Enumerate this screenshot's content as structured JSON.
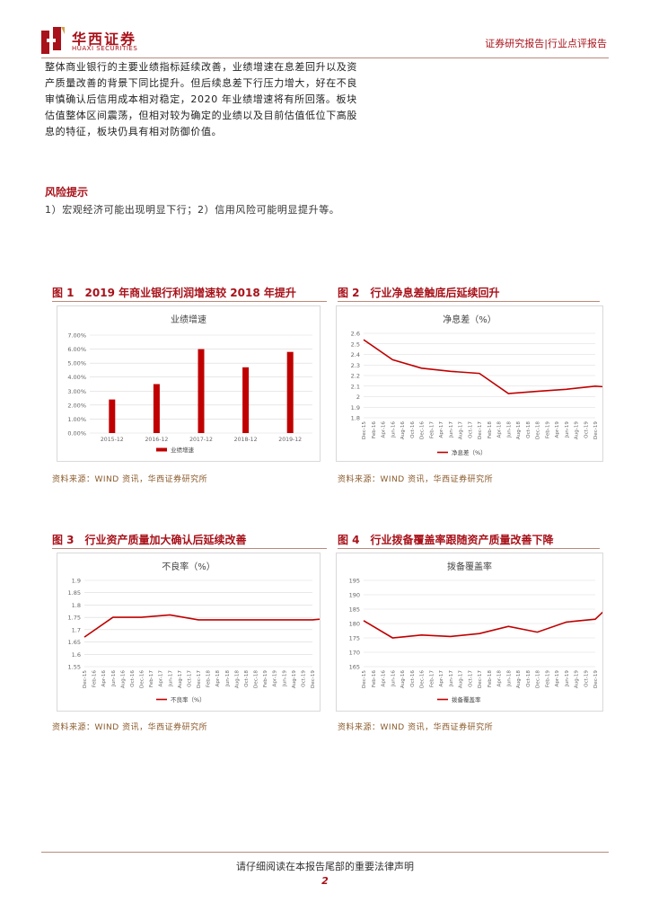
{
  "header": {
    "brand_cn": "华西证券",
    "brand_en": "HUAXI SECURITIES",
    "right_text": "证券研究报告|行业点评报告"
  },
  "body": {
    "paragraph": "整体商业银行的主要业绩指标延续改善，业绩增速在息差回升以及资产质量改善的背景下同比提升。但后续息差下行压力增大，好在不良审慎确认后信用成本相对稳定，2020 年业绩增速将有所回落。板块估值整体区间震荡，但相对较为确定的业绩以及目前估值低位下高股息的特征，板块仍具有相对防御价值。",
    "risk_title": "风险提示",
    "risk_text": "1）宏观经济可能出现明显下行；2）信用风险可能明显提升等。"
  },
  "figures": [
    {
      "title": "图 1　2019 年商业银行利润增速较 2018 年提升",
      "source": "资料来源：WIND 资讯，华西证券研究所"
    },
    {
      "title": "图 2　行业净息差触底后延续回升",
      "source": "资料来源：WIND 资讯，华西证券研究所"
    },
    {
      "title": "图 3　行业资产质量加大确认后延续改善",
      "source": "资料来源：WIND 资讯，华西证券研究所"
    },
    {
      "title": "图 4　行业拨备覆盖率跟随资产质量改善下降",
      "source": "资料来源：WIND 资讯，华西证券研究所"
    }
  ],
  "footer": {
    "text": "请仔细阅读在本报告尾部的重要法律声明",
    "page": "2"
  },
  "colors": {
    "accent": "#a8121a",
    "series": "#c00000",
    "grid": "#d9d9d9"
  },
  "chart_data": [
    {
      "type": "bar",
      "title": "业绩增速",
      "categories": [
        "2015-12",
        "2016-12",
        "2017-12",
        "2018-12",
        "2019-12"
      ],
      "series": [
        {
          "name": "业绩增速",
          "values": [
            0.024,
            0.035,
            0.06,
            0.047,
            0.058
          ]
        }
      ],
      "yticks": [
        "0.00%",
        "1.00%",
        "2.00%",
        "3.00%",
        "4.00%",
        "5.00%",
        "6.00%",
        "7.00%"
      ],
      "ylim": [
        0,
        0.07
      ],
      "legend": "bottom",
      "grid": true
    },
    {
      "type": "line",
      "title": "净息差（%）",
      "x": [
        "Dec-15",
        "Feb-16",
        "Apr-16",
        "Jun-16",
        "Aug-16",
        "Oct-16",
        "Dec-16",
        "Feb-17",
        "Apr-17",
        "Jun-17",
        "Aug-17",
        "Oct-17",
        "Dec-17",
        "Feb-18",
        "Apr-18",
        "Jun-18",
        "Aug-18",
        "Oct-18",
        "Dec-18",
        "Feb-19",
        "Apr-19",
        "Jun-19",
        "Aug-19",
        "Oct-19",
        "Dec-19"
      ],
      "points": [
        [
          0,
          2.54
        ],
        [
          3,
          2.35
        ],
        [
          6,
          2.27
        ],
        [
          9,
          2.24
        ],
        [
          12,
          2.22
        ],
        [
          15,
          2.03
        ],
        [
          18,
          2.05
        ],
        [
          21,
          2.07
        ],
        [
          24,
          2.1
        ],
        [
          27,
          2.08
        ],
        [
          30,
          2.12
        ],
        [
          33,
          2.15
        ],
        [
          36,
          2.18
        ],
        [
          39,
          2.17
        ],
        [
          42,
          2.18
        ],
        [
          45,
          2.19
        ],
        [
          48,
          2.2
        ]
      ],
      "series": [
        {
          "name": "净息差（%）"
        }
      ],
      "yticks": [
        "1.8",
        "1.9",
        "2",
        "2.1",
        "2.2",
        "2.3",
        "2.4",
        "2.5",
        "2.6"
      ],
      "ylim": [
        1.8,
        2.6
      ],
      "legend": "bottom",
      "grid": true
    },
    {
      "type": "line",
      "title": "不良率（%）",
      "x": [
        "Dec-15",
        "Feb-16",
        "Apr-16",
        "Jun-16",
        "Aug-16",
        "Oct-16",
        "Dec-16",
        "Feb-17",
        "Apr-17",
        "Jun-17",
        "Aug-17",
        "Oct-17",
        "Dec-17",
        "Feb-18",
        "Apr-18",
        "Jun-18",
        "Aug-18",
        "Oct-18",
        "Dec-18",
        "Feb-19",
        "Apr-19",
        "Jun-19",
        "Aug-19",
        "Oct-19",
        "Dec-19"
      ],
      "points": [
        [
          0,
          1.67
        ],
        [
          3,
          1.75
        ],
        [
          6,
          1.75
        ],
        [
          9,
          1.76
        ],
        [
          12,
          1.74
        ],
        [
          15,
          1.74
        ],
        [
          18,
          1.74
        ],
        [
          21,
          1.74
        ],
        [
          24,
          1.74
        ],
        [
          27,
          1.75
        ],
        [
          30,
          1.86
        ],
        [
          33,
          1.87
        ],
        [
          36,
          1.83
        ],
        [
          39,
          1.8
        ],
        [
          42,
          1.81
        ],
        [
          45,
          1.86
        ],
        [
          48,
          1.86
        ]
      ],
      "series": [
        {
          "name": "不良率（%）"
        }
      ],
      "yticks": [
        "1.55",
        "1.6",
        "1.65",
        "1.7",
        "1.75",
        "1.8",
        "1.85",
        "1.9"
      ],
      "ylim": [
        1.55,
        1.9
      ],
      "legend": "bottom",
      "grid": true
    },
    {
      "type": "line",
      "title": "拨备覆盖率",
      "x": [
        "Dec-15",
        "Feb-16",
        "Apr-16",
        "Jun-16",
        "Aug-16",
        "Oct-16",
        "Dec-16",
        "Feb-17",
        "Apr-17",
        "Jun-17",
        "Aug-17",
        "Oct-17",
        "Dec-17",
        "Feb-18",
        "Apr-18",
        "Jun-18",
        "Aug-18",
        "Oct-18",
        "Dec-18",
        "Feb-19",
        "Apr-19",
        "Jun-19",
        "Aug-19",
        "Oct-19",
        "Dec-19"
      ],
      "points": [
        [
          0,
          181
        ],
        [
          3,
          175
        ],
        [
          6,
          176
        ],
        [
          9,
          175.5
        ],
        [
          12,
          176.5
        ],
        [
          15,
          179
        ],
        [
          18,
          177
        ],
        [
          21,
          180.5
        ],
        [
          24,
          181.5
        ],
        [
          27,
          191
        ],
        [
          30,
          179
        ],
        [
          33,
          181
        ],
        [
          36,
          187
        ],
        [
          39,
          192
        ],
        [
          42,
          190.5
        ],
        [
          45,
          187.5
        ],
        [
          48,
          186
        ]
      ],
      "series": [
        {
          "name": "拨备覆盖率"
        }
      ],
      "yticks": [
        "165",
        "170",
        "175",
        "180",
        "185",
        "190",
        "195"
      ],
      "ylim": [
        165,
        195
      ],
      "legend": "bottom",
      "grid": true
    }
  ]
}
